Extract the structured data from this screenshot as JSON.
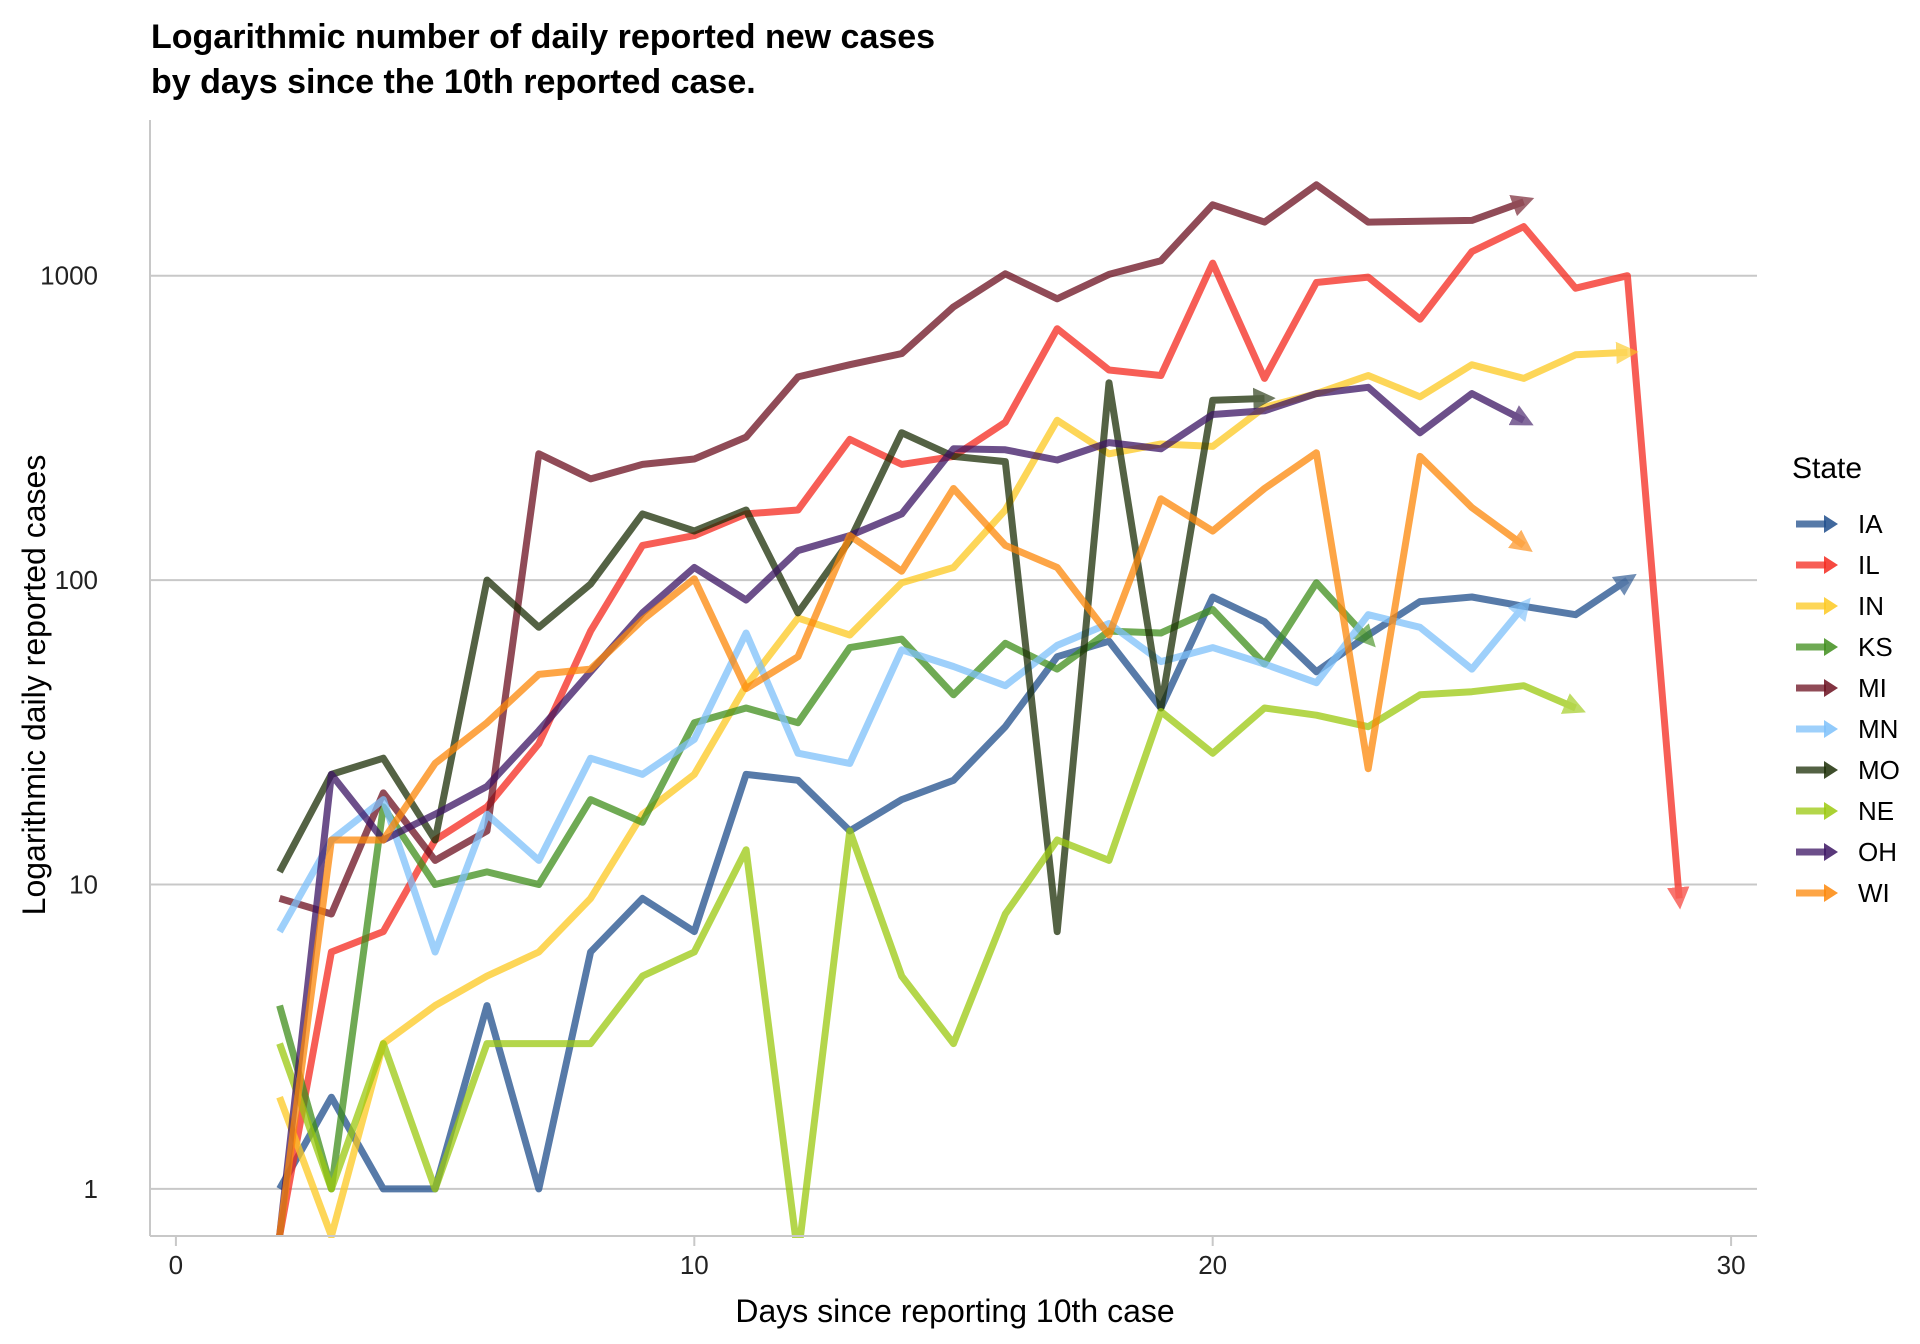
{
  "chart_data": {
    "type": "line",
    "title_line1": "Logarithmic number of daily reported new cases",
    "title_line2": "by days since the 10th reported case.",
    "xlabel": "Days since reporting 10th case",
    "ylabel": "Logarithmic daily reported cases",
    "x_scale": "linear",
    "y_scale": "log10",
    "xlim": [
      -0.5,
      30.5
    ],
    "ylim": [
      0.7,
      2400
    ],
    "x_ticks": [
      0,
      10,
      20,
      30
    ],
    "x_tick_labels": [
      "0",
      "10",
      "20",
      "30"
    ],
    "y_ticks": [
      1,
      10,
      100,
      1000
    ],
    "y_tick_labels": [
      "1",
      "10",
      "100",
      "1000"
    ],
    "grid": "horizontal",
    "legend_title": "State",
    "legend_position": "right",
    "series": [
      {
        "name": "IA",
        "color": "#1f4e8c",
        "x": [
          2,
          3,
          4,
          5,
          6,
          7,
          8,
          9,
          10,
          11,
          12,
          13,
          14,
          15,
          16,
          17,
          18,
          19,
          20,
          21,
          22,
          23,
          24,
          25,
          26,
          27,
          28
        ],
        "y": [
          1,
          2,
          1,
          1,
          4,
          1,
          6,
          9,
          7,
          23,
          22,
          15,
          19,
          22,
          33,
          56,
          63,
          38,
          88,
          73,
          50,
          66,
          85,
          88,
          82,
          77,
          100
        ]
      },
      {
        "name": "IL",
        "color": "#f5291e",
        "x": [
          2,
          3,
          4,
          5,
          6,
          7,
          8,
          9,
          10,
          11,
          12,
          13,
          14,
          15,
          16,
          17,
          18,
          19,
          20,
          21,
          22,
          23,
          24,
          25,
          26,
          27,
          28,
          29
        ],
        "y": [
          0.7,
          6,
          7,
          14,
          18,
          29,
          68,
          130,
          140,
          165,
          170,
          290,
          240,
          255,
          330,
          670,
          490,
          470,
          1100,
          460,
          950,
          990,
          720,
          1200,
          1450,
          910,
          1000,
          9
        ]
      },
      {
        "name": "IN",
        "color": "#fdc921",
        "x": [
          2,
          3,
          4,
          5,
          6,
          7,
          8,
          9,
          10,
          11,
          12,
          13,
          14,
          15,
          16,
          17,
          18,
          19,
          20,
          21,
          22,
          23,
          24,
          25,
          26,
          27,
          28
        ],
        "y": [
          2,
          0.7,
          3,
          4,
          5,
          6,
          9,
          17,
          23,
          45,
          75,
          66,
          98,
          110,
          170,
          335,
          260,
          280,
          275,
          370,
          410,
          470,
          400,
          510,
          460,
          550,
          560
        ]
      },
      {
        "name": "KS",
        "color": "#3f8e1c",
        "x": [
          2,
          3,
          4,
          5,
          6,
          7,
          8,
          9,
          10,
          11,
          12,
          13,
          14,
          15,
          16,
          17,
          18,
          19,
          20,
          21,
          22,
          23
        ],
        "y": [
          4,
          1,
          18,
          10,
          11,
          10,
          19,
          16,
          34,
          38,
          34,
          60,
          64,
          42,
          62,
          51,
          68,
          67,
          80,
          53,
          98,
          64
        ]
      },
      {
        "name": "MI",
        "color": "#6b0f1f",
        "x": [
          2,
          3,
          4,
          5,
          6,
          7,
          8,
          9,
          10,
          11,
          12,
          13,
          14,
          15,
          16,
          17,
          18,
          19,
          20,
          21,
          22,
          23,
          24,
          25,
          26
        ],
        "y": [
          9,
          8,
          20,
          12,
          15,
          260,
          215,
          240,
          250,
          295,
          465,
          510,
          555,
          790,
          1015,
          840,
          1010,
          1120,
          1710,
          1500,
          1990,
          1500,
          1510,
          1520,
          1750
        ]
      },
      {
        "name": "MN",
        "color": "#7ec1fa",
        "x": [
          2,
          3,
          4,
          5,
          6,
          7,
          8,
          9,
          10,
          11,
          12,
          13,
          14,
          15,
          16,
          17,
          18,
          19,
          20,
          21,
          22,
          23,
          24,
          25,
          26
        ],
        "y": [
          7,
          14,
          19,
          6,
          17,
          12,
          26,
          23,
          30,
          67,
          27,
          25,
          59,
          52,
          45,
          61,
          72,
          54,
          60,
          53,
          46,
          77,
          70,
          51,
          82
        ]
      },
      {
        "name": "MO",
        "color": "#1c2e06",
        "x": [
          2,
          3,
          4,
          5,
          6,
          7,
          8,
          9,
          10,
          11,
          12,
          13,
          14,
          15,
          16,
          17,
          18,
          19,
          20,
          21
        ],
        "y": [
          11,
          23,
          26,
          14,
          100,
          70,
          97,
          165,
          145,
          170,
          78,
          135,
          305,
          255,
          245,
          7,
          445,
          38,
          390,
          395
        ]
      },
      {
        "name": "NE",
        "color": "#9bc90f",
        "x": [
          2,
          3,
          4,
          5,
          6,
          7,
          8,
          9,
          10,
          11,
          12,
          13,
          14,
          15,
          16,
          17,
          18,
          19,
          20,
          21,
          22,
          23,
          24,
          25,
          26,
          27
        ],
        "y": [
          3,
          1,
          3,
          1,
          3,
          3,
          3,
          5,
          6,
          13,
          0.6,
          15,
          5,
          3,
          8,
          14,
          12,
          37,
          27,
          38,
          36,
          33,
          42,
          43,
          45,
          38
        ]
      },
      {
        "name": "OH",
        "color": "#3c1563",
        "x": [
          2,
          3,
          4,
          5,
          6,
          7,
          8,
          9,
          10,
          11,
          12,
          13,
          14,
          15,
          16,
          17,
          18,
          19,
          20,
          21,
          22,
          23,
          24,
          25,
          26
        ],
        "y": [
          0.7,
          23,
          14,
          17,
          21,
          32,
          50,
          78,
          110,
          86,
          125,
          140,
          165,
          270,
          268,
          248,
          283,
          270,
          350,
          360,
          410,
          430,
          305,
          410,
          335
        ]
      },
      {
        "name": "WI",
        "color": "#fd8709",
        "x": [
          2,
          3,
          4,
          5,
          6,
          7,
          8,
          9,
          10,
          11,
          12,
          13,
          14,
          15,
          16,
          17,
          18,
          19,
          20,
          21,
          22,
          23,
          24,
          25,
          26
        ],
        "y": [
          0.7,
          14,
          14,
          25,
          34,
          49,
          51,
          74,
          101,
          44,
          56,
          140,
          107,
          200,
          130,
          110,
          66,
          185,
          145,
          200,
          262,
          24,
          255,
          173,
          130
        ]
      }
    ]
  }
}
